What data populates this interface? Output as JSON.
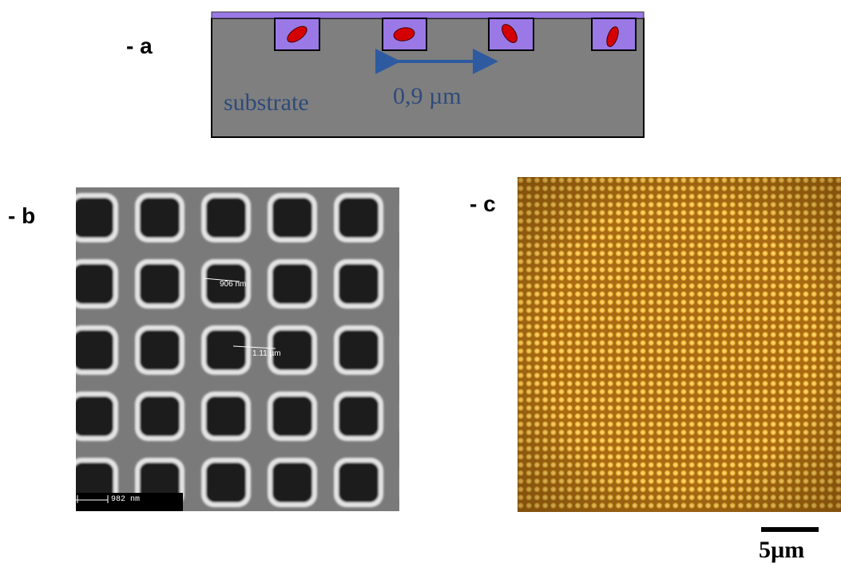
{
  "panels": {
    "a": {
      "label": "- a",
      "substrate_label": "substrate",
      "spacing_label": "0,9 µm",
      "colors": {
        "substrate": "#7f7f7f",
        "resin": "#9a79e6",
        "particle": "#d40000",
        "arrow": "#2e5aa0"
      }
    },
    "b": {
      "label": "- b",
      "measure_1": "906 nm",
      "measure_2": "1.11 µm",
      "scale_label": "982 nm",
      "grid": {
        "columns": 5,
        "rows": 5
      }
    },
    "c": {
      "label": "- c",
      "colors": {
        "background": "#a86a12",
        "dot": "#ffd75a"
      }
    }
  },
  "scalebar": {
    "label": "5µm"
  }
}
